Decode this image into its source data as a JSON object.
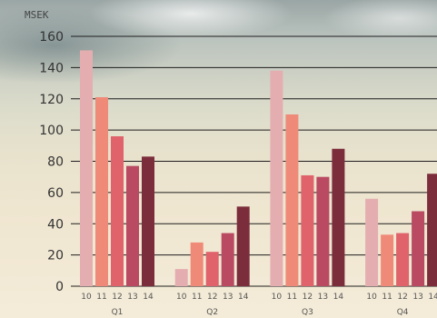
{
  "chart_data": {
    "type": "bar",
    "unit_label": "MSEK",
    "groups": [
      "Q1",
      "Q2",
      "Q3",
      "Q4"
    ],
    "categories": [
      "10",
      "11",
      "12",
      "13",
      "14"
    ],
    "series": [
      {
        "group": "Q1",
        "values": [
          151,
          121,
          96,
          77,
          83
        ]
      },
      {
        "group": "Q2",
        "values": [
          11,
          28,
          22,
          34,
          51
        ]
      },
      {
        "group": "Q3",
        "values": [
          138,
          110,
          71,
          70,
          88
        ]
      },
      {
        "group": "Q4",
        "values": [
          56,
          33,
          34,
          48,
          72
        ]
      }
    ],
    "colors": [
      "#e4aeb0",
      "#f08a78",
      "#e0626a",
      "#b94a62",
      "#7c2d3c"
    ],
    "ylim": [
      0,
      160
    ],
    "yticks": [
      0,
      20,
      40,
      60,
      80,
      100,
      120,
      140,
      160
    ],
    "grid": true
  }
}
